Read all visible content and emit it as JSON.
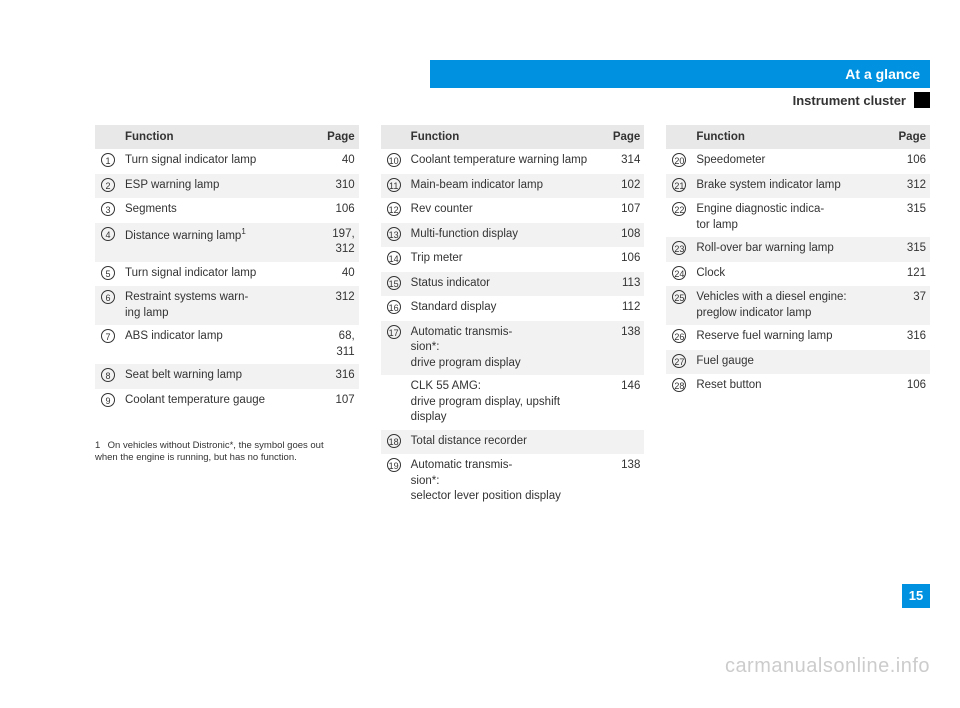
{
  "colors": {
    "accent": "#0092e0",
    "row_alt": "#f2f2f2",
    "header_row": "#e8e8e8",
    "text": "#333333",
    "watermark": "#cccccc"
  },
  "header": {
    "title": "At a glance",
    "subtitle": "Instrument cluster"
  },
  "page_number": "15",
  "watermark": "carmanualsonline.info",
  "table_headers": {
    "col1": "",
    "col2": "Function",
    "col3": "Page"
  },
  "footnote": {
    "marker": "1",
    "text": "On vehicles without Distronic*, the symbol goes out when the engine is running, but has no function."
  },
  "columns": [
    {
      "rows": [
        {
          "n": "1",
          "fn": "Turn signal indicator lamp",
          "pg": "40"
        },
        {
          "n": "2",
          "fn": "ESP warning lamp",
          "pg": "310"
        },
        {
          "n": "3",
          "fn": "Segments",
          "pg": "106"
        },
        {
          "n": "4",
          "fn": "Distance warning lamp",
          "sup": "1",
          "pg": "197,\n312"
        },
        {
          "n": "5",
          "fn": "Turn signal indicator lamp",
          "pg": "40"
        },
        {
          "n": "6",
          "fn": "Restraint systems warn-\ning lamp",
          "pg": "312"
        },
        {
          "n": "7",
          "fn": "ABS indicator lamp",
          "pg": "68,\n311"
        },
        {
          "n": "8",
          "fn": "Seat belt warning lamp",
          "pg": "316"
        },
        {
          "n": "9",
          "fn": "Coolant temperature gauge",
          "pg": "107"
        }
      ]
    },
    {
      "rows": [
        {
          "n": "10",
          "fn": "Coolant temperature warning lamp",
          "pg": "314"
        },
        {
          "n": "11",
          "fn": "Main-beam indicator lamp",
          "pg": "102"
        },
        {
          "n": "12",
          "fn": "Rev counter",
          "pg": "107"
        },
        {
          "n": "13",
          "fn": "Multi-function display",
          "pg": "108"
        },
        {
          "n": "14",
          "fn": "Trip meter",
          "pg": "106"
        },
        {
          "n": "15",
          "fn": "Status indicator",
          "pg": "113"
        },
        {
          "n": "16",
          "fn": "Standard display",
          "pg": "112"
        },
        {
          "n": "17",
          "fn": "Automatic transmis-\nsion*:\ndrive program display",
          "pg": "138"
        },
        {
          "n": "",
          "fn": "CLK 55 AMG:\ndrive program display, upshift display",
          "pg": "146"
        },
        {
          "n": "18",
          "fn": "Total distance recorder",
          "pg": ""
        },
        {
          "n": "19",
          "fn": "Automatic transmis-\nsion*:\nselector lever position display",
          "pg": "138"
        }
      ]
    },
    {
      "rows": [
        {
          "n": "20",
          "fn": "Speedometer",
          "pg": "106"
        },
        {
          "n": "21",
          "fn": "Brake system indicator lamp",
          "pg": "312"
        },
        {
          "n": "22",
          "fn": "Engine diagnostic indica-\ntor lamp",
          "pg": "315"
        },
        {
          "n": "23",
          "fn": "Roll-over bar warning lamp",
          "pg": "315"
        },
        {
          "n": "24",
          "fn": "Clock",
          "pg": "121"
        },
        {
          "n": "25",
          "fn": "Vehicles with a diesel engine:\npreglow indicator lamp",
          "pg": "37"
        },
        {
          "n": "26",
          "fn": "Reserve fuel warning lamp",
          "pg": "316"
        },
        {
          "n": "27",
          "fn": "Fuel gauge",
          "pg": ""
        },
        {
          "n": "28",
          "fn": "Reset button",
          "pg": "106"
        }
      ]
    }
  ]
}
